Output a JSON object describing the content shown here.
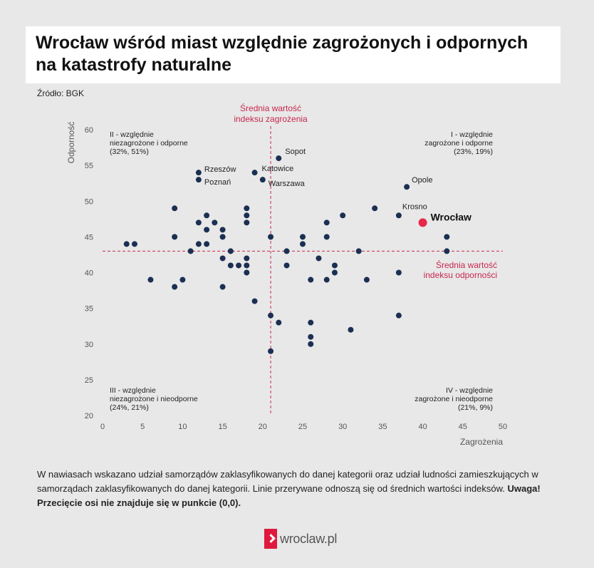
{
  "title": "Wrocław wśród miast względnie zagrożonych i odpornych na katastrofy naturalne",
  "source": "Źródło: BGK",
  "footnote_text": "W nawiasach wskazano udział samorządów zaklasyfikowanych do danej kategorii oraz udział ludności zamieszkujących w samorządach zaklasyfikowanych do danej kategorii. Linie przerywane odnoszą się od średnich wartości indeksów. ",
  "footnote_bold": "Uwaga! Przecięcie osi nie znajduje się w punkcie (0,0).",
  "logo_text": "wroclaw.pl",
  "colors": {
    "point": "#1b2f52",
    "highlight": "#e8284a",
    "mean_line": "#c8274d",
    "axis_text": "#555555"
  },
  "chart_data": {
    "type": "scatter",
    "xlabel": "Zagrożenia",
    "ylabel": "Odporność",
    "xlim": [
      0,
      50
    ],
    "ylim": [
      20,
      60
    ],
    "x_ticks": [
      0,
      5,
      10,
      15,
      20,
      25,
      30,
      35,
      40,
      45,
      50
    ],
    "y_ticks": [
      20,
      25,
      30,
      35,
      40,
      45,
      50,
      55,
      60
    ],
    "grid": false,
    "mean_x": 21,
    "mean_y": 43,
    "mean_x_label": [
      "Średnia wartość",
      "indeksu zagrożenia"
    ],
    "mean_y_label": [
      "Średnia wartość",
      "indeksu odporności"
    ],
    "quadrants": [
      {
        "position": "top-left",
        "lines": [
          "II - względnie",
          "niezagrożone i odporne",
          "(32%, 51%)"
        ]
      },
      {
        "position": "top-right",
        "lines": [
          "I - względnie",
          "zagrożone i odporne",
          "(23%, 19%)"
        ]
      },
      {
        "position": "bottom-left",
        "lines": [
          "III - względnie",
          "niezagrożone i nieodporne",
          "(24%, 21%)"
        ]
      },
      {
        "position": "bottom-right",
        "lines": [
          "IV - względnie",
          "zagrożone i nieodporne",
          "(21%, 9%)"
        ]
      }
    ],
    "labeled_points": [
      {
        "label": "Sopot",
        "x": 22,
        "y": 56
      },
      {
        "label": "Rzeszów",
        "x": 12,
        "y": 54
      },
      {
        "label": "Katowice",
        "x": 19,
        "y": 54
      },
      {
        "label": "Poznań",
        "x": 12,
        "y": 53
      },
      {
        "label": "Warszawa",
        "x": 20,
        "y": 53
      },
      {
        "label": "Opole",
        "x": 38,
        "y": 52
      },
      {
        "label": "Krosno",
        "x": 37,
        "y": 48
      }
    ],
    "highlight": {
      "label": "Wrocław",
      "x": 40,
      "y": 47
    },
    "points": [
      [
        3,
        44
      ],
      [
        4,
        44
      ],
      [
        6,
        39
      ],
      [
        9,
        49
      ],
      [
        9,
        45
      ],
      [
        9,
        38
      ],
      [
        10,
        39
      ],
      [
        11,
        43
      ],
      [
        12,
        47
      ],
      [
        12,
        44
      ],
      [
        13,
        48
      ],
      [
        13,
        46
      ],
      [
        13,
        44
      ],
      [
        14,
        47
      ],
      [
        15,
        46
      ],
      [
        15,
        45
      ],
      [
        15,
        42
      ],
      [
        15,
        38
      ],
      [
        16,
        43
      ],
      [
        16,
        41
      ],
      [
        17,
        41
      ],
      [
        18,
        49
      ],
      [
        18,
        48
      ],
      [
        18,
        47
      ],
      [
        18,
        42
      ],
      [
        18,
        41
      ],
      [
        18,
        40
      ],
      [
        19,
        36
      ],
      [
        21,
        45
      ],
      [
        21,
        34
      ],
      [
        21,
        29
      ],
      [
        22,
        33
      ],
      [
        23,
        43
      ],
      [
        23,
        41
      ],
      [
        25,
        45
      ],
      [
        25,
        44
      ],
      [
        26,
        39
      ],
      [
        26,
        33
      ],
      [
        26,
        31
      ],
      [
        26,
        30
      ],
      [
        27,
        42
      ],
      [
        28,
        47
      ],
      [
        28,
        45
      ],
      [
        28,
        39
      ],
      [
        29,
        41
      ],
      [
        29,
        40
      ],
      [
        30,
        48
      ],
      [
        31,
        32
      ],
      [
        32,
        43
      ],
      [
        33,
        39
      ],
      [
        34,
        49
      ],
      [
        37,
        40
      ],
      [
        37,
        34
      ],
      [
        43,
        45
      ],
      [
        43,
        43
      ]
    ]
  }
}
